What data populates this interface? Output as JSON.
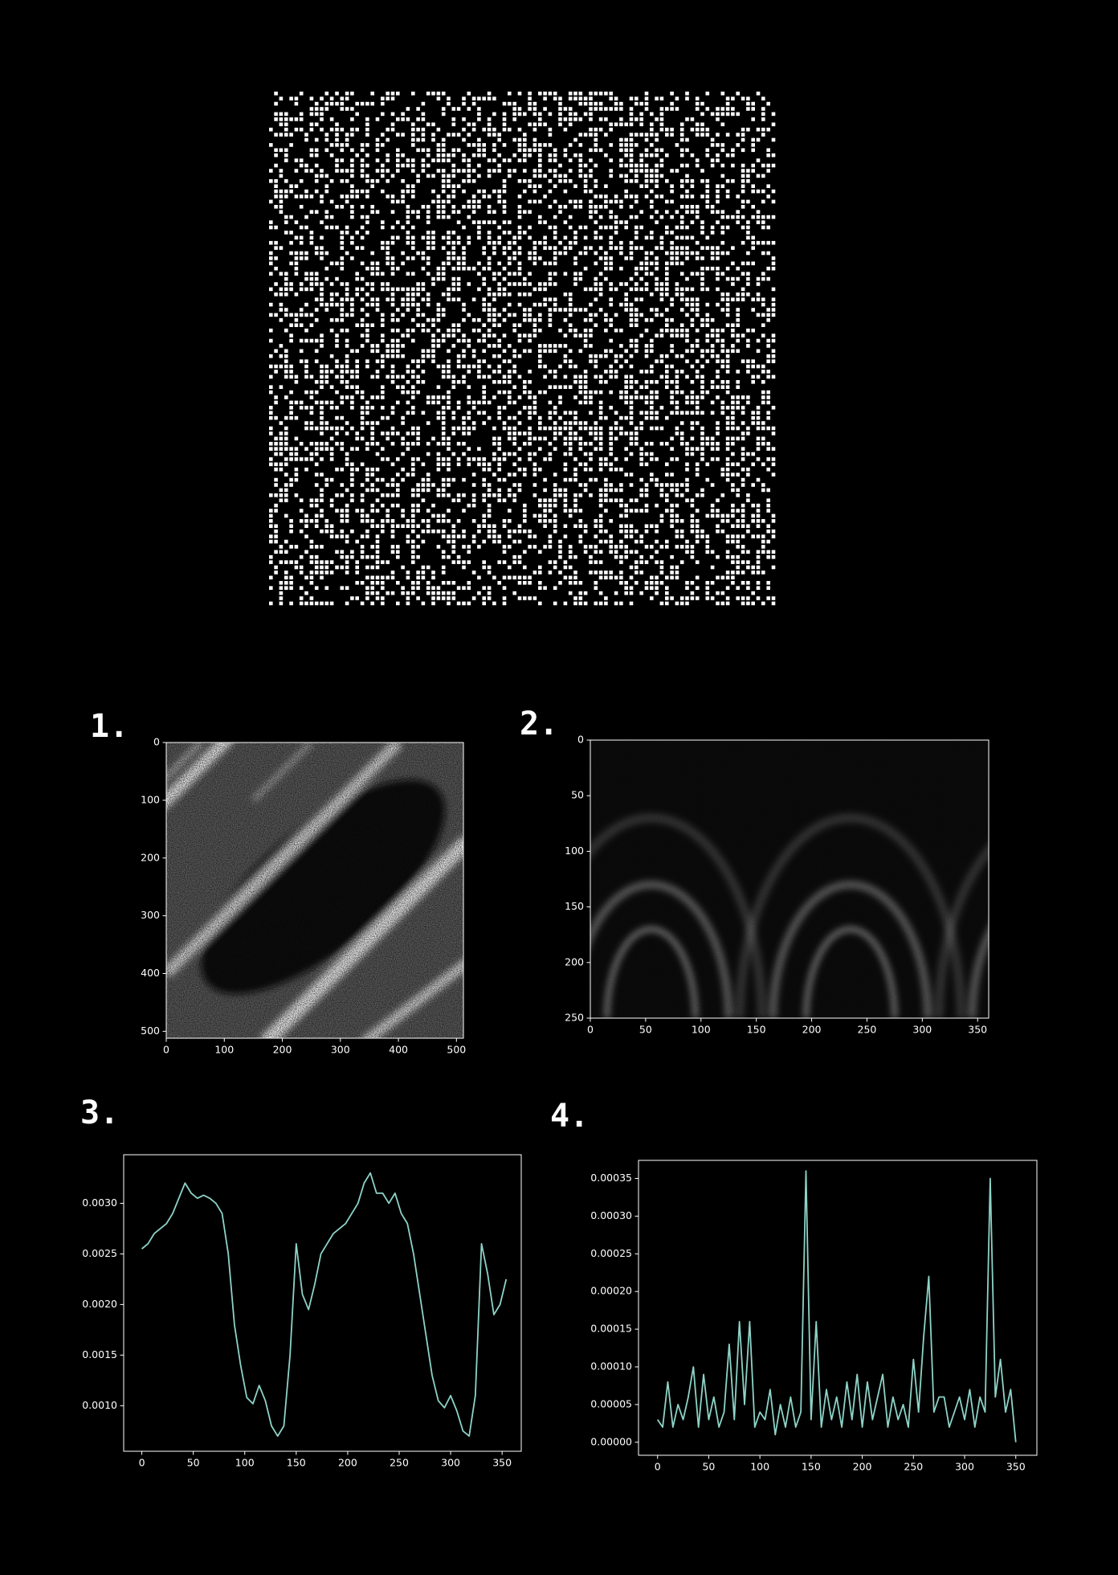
{
  "chart_data": [
    {
      "type": "image"
    },
    {
      "type": "image",
      "title": "1.",
      "xlim": [
        0,
        512
      ],
      "ylim": [
        512,
        0
      ],
      "xticks": [
        0,
        100,
        200,
        300,
        400,
        500
      ],
      "yticks": [
        0,
        100,
        200,
        300,
        400,
        500
      ]
    },
    {
      "type": "image",
      "title": "2.",
      "xlim": [
        0,
        360
      ],
      "ylim": [
        250,
        0
      ],
      "xticks": [
        0,
        50,
        100,
        150,
        200,
        250,
        300,
        350
      ],
      "yticks": [
        0,
        50,
        100,
        150,
        200,
        250
      ]
    },
    {
      "type": "line",
      "title": "3.",
      "color": "#8dd3c7",
      "xlim": [
        -17.6,
        368.6
      ],
      "ylim": [
        0.00055,
        0.00348
      ],
      "xticks": [
        0,
        50,
        100,
        150,
        200,
        250,
        300,
        350
      ],
      "yticks": [
        {
          "value": 0.001,
          "label": "0.0010"
        },
        {
          "value": 0.0015,
          "label": "0.0015"
        },
        {
          "value": 0.002,
          "label": "0.0020"
        },
        {
          "value": 0.0025,
          "label": "0.0025"
        },
        {
          "value": 0.003,
          "label": "0.0030"
        }
      ],
      "x": [
        0,
        6,
        12,
        18,
        24,
        30,
        36,
        42,
        48,
        54,
        60,
        66,
        72,
        78,
        84,
        90,
        96,
        102,
        108,
        114,
        120,
        126,
        132,
        138,
        144,
        150,
        156,
        162,
        168,
        174,
        180,
        186,
        192,
        198,
        204,
        210,
        216,
        222,
        228,
        234,
        240,
        246,
        252,
        258,
        264,
        270,
        276,
        282,
        288,
        294,
        300,
        306,
        312,
        318,
        324,
        330,
        336,
        342,
        348,
        354
      ],
      "values": [
        0.00255,
        0.0026,
        0.0027,
        0.00275,
        0.0028,
        0.0029,
        0.00305,
        0.0032,
        0.0031,
        0.00305,
        0.00308,
        0.00305,
        0.003,
        0.0029,
        0.0025,
        0.0018,
        0.0014,
        0.00108,
        0.00102,
        0.0012,
        0.00105,
        0.0008,
        0.0007,
        0.0008,
        0.0015,
        0.0026,
        0.0021,
        0.00195,
        0.0022,
        0.0025,
        0.0026,
        0.0027,
        0.00275,
        0.0028,
        0.0029,
        0.003,
        0.0032,
        0.0033,
        0.0031,
        0.0031,
        0.003,
        0.0031,
        0.0029,
        0.0028,
        0.0025,
        0.0021,
        0.0017,
        0.0013,
        0.00105,
        0.00098,
        0.0011,
        0.00095,
        0.00075,
        0.0007,
        0.0011,
        0.0026,
        0.0023,
        0.0019,
        0.002,
        0.00225
      ]
    },
    {
      "type": "line",
      "title": "4.",
      "color": "#8dd3c7",
      "xlim": [
        -18.6,
        370.6
      ],
      "ylim": [
        -1.73e-05,
        0.000374
      ],
      "xticks": [
        0,
        50,
        100,
        150,
        200,
        250,
        300,
        350
      ],
      "yticks": [
        {
          "value": 0,
          "label": "0.00000"
        },
        {
          "value": 5e-05,
          "label": "0.00005"
        },
        {
          "value": 0.0001,
          "label": "0.00010"
        },
        {
          "value": 0.00015,
          "label": "0.00015"
        },
        {
          "value": 0.0002,
          "label": "0.00020"
        },
        {
          "value": 0.00025,
          "label": "0.00025"
        },
        {
          "value": 0.0003,
          "label": "0.00030"
        },
        {
          "value": 0.00035,
          "label": "0.00035"
        }
      ],
      "x": [
        0,
        5,
        10,
        15,
        20,
        25,
        30,
        35,
        40,
        45,
        50,
        55,
        60,
        65,
        70,
        75,
        80,
        85,
        90,
        95,
        100,
        105,
        110,
        115,
        120,
        125,
        130,
        135,
        140,
        145,
        150,
        155,
        160,
        165,
        170,
        175,
        180,
        185,
        190,
        195,
        200,
        205,
        210,
        215,
        220,
        225,
        230,
        235,
        240,
        245,
        250,
        255,
        260,
        265,
        270,
        275,
        280,
        285,
        290,
        295,
        300,
        305,
        310,
        315,
        320,
        325,
        330,
        335,
        340,
        345,
        350
      ],
      "values": [
        3e-05,
        2e-05,
        8e-05,
        2e-05,
        5e-05,
        3e-05,
        6e-05,
        0.0001,
        2e-05,
        9e-05,
        3e-05,
        6e-05,
        2e-05,
        4e-05,
        0.00013,
        3e-05,
        0.00016,
        5e-05,
        0.00016,
        2e-05,
        4e-05,
        3e-05,
        7e-05,
        1e-05,
        5e-05,
        2e-05,
        6e-05,
        2e-05,
        4e-05,
        0.00036,
        3e-05,
        0.00016,
        2e-05,
        7e-05,
        3e-05,
        6e-05,
        2e-05,
        8e-05,
        3e-05,
        9e-05,
        2e-05,
        8e-05,
        3e-05,
        6e-05,
        9e-05,
        2e-05,
        6e-05,
        3e-05,
        5e-05,
        2e-05,
        0.00011,
        4e-05,
        0.00014,
        0.00022,
        4e-05,
        6e-05,
        6e-05,
        2e-05,
        4e-05,
        6e-05,
        3e-05,
        7e-05,
        2e-05,
        6e-05,
        4e-05,
        0.00035,
        6e-05,
        0.00011,
        4e-05,
        7e-05,
        0
      ]
    }
  ]
}
